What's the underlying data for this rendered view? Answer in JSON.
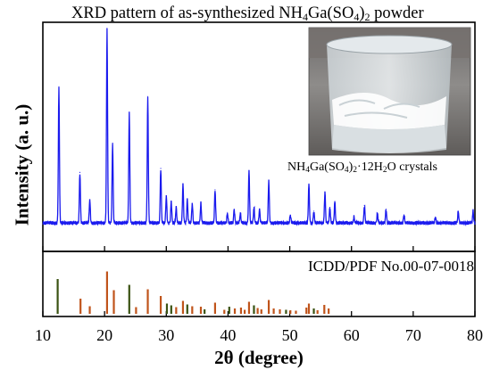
{
  "chart_data": {
    "type": "line",
    "title_parts": [
      "XRD pattern of as-synthesized NH",
      "4",
      "Ga(SO",
      "4",
      ")",
      "2",
      " powder"
    ],
    "xlabel": "2θ (degree)",
    "ylabel": "Intensity (a. u.)",
    "xlim": [
      10,
      80
    ],
    "xticks": [
      "10",
      "20",
      "30",
      "40",
      "50",
      "60",
      "70",
      "80"
    ],
    "inset": {
      "caption_parts": [
        "NH",
        "4",
        "Ga(SO",
        "4",
        ")",
        "2",
        "·12H",
        "2",
        "O crystals"
      ],
      "image": "beaker-of-crystals-photo"
    },
    "series": [
      {
        "color": "#1a1aee",
        "peaks": [
          [
            12.6,
            0.7
          ],
          [
            16.0,
            0.26
          ],
          [
            17.6,
            0.12
          ],
          [
            20.4,
            1.0
          ],
          [
            21.3,
            0.41
          ],
          [
            24.0,
            0.57
          ],
          [
            27.0,
            0.65
          ],
          [
            29.1,
            0.28
          ],
          [
            30.0,
            0.14
          ],
          [
            30.8,
            0.11
          ],
          [
            31.6,
            0.08
          ],
          [
            32.7,
            0.2
          ],
          [
            33.4,
            0.12
          ],
          [
            34.2,
            0.1
          ],
          [
            35.6,
            0.1
          ],
          [
            37.9,
            0.17
          ],
          [
            39.9,
            0.05
          ],
          [
            41.0,
            0.07
          ],
          [
            42.0,
            0.05
          ],
          [
            43.4,
            0.27
          ],
          [
            44.2,
            0.08
          ],
          [
            45.1,
            0.07
          ],
          [
            46.6,
            0.22
          ],
          [
            50.1,
            0.04
          ],
          [
            53.1,
            0.2
          ],
          [
            53.9,
            0.06
          ],
          [
            55.7,
            0.16
          ],
          [
            56.5,
            0.08
          ],
          [
            57.3,
            0.11
          ],
          [
            60.4,
            0.03
          ],
          [
            62.1,
            0.09
          ],
          [
            64.2,
            0.05
          ],
          [
            65.6,
            0.07
          ],
          [
            68.5,
            0.04
          ],
          [
            73.6,
            0.03
          ],
          [
            77.3,
            0.06
          ],
          [
            79.7,
            0.06
          ]
        ]
      }
    ],
    "reference": {
      "label": "ICDD/PDF No.00-07-0018",
      "bar_color": "#c0541b",
      "dark_bar_color": "#3a5212",
      "lines": [
        [
          12.4,
          0.78,
          1
        ],
        [
          16.1,
          0.34,
          0
        ],
        [
          17.6,
          0.17,
          0
        ],
        [
          20.4,
          0.95,
          0
        ],
        [
          21.5,
          0.53,
          0
        ],
        [
          24.0,
          0.65,
          1
        ],
        [
          25.1,
          0.15,
          0
        ],
        [
          27.0,
          0.55,
          0
        ],
        [
          29.1,
          0.4,
          0
        ],
        [
          30.1,
          0.23,
          1
        ],
        [
          30.8,
          0.19,
          1
        ],
        [
          31.6,
          0.15,
          0
        ],
        [
          32.7,
          0.29,
          0
        ],
        [
          33.4,
          0.21,
          1
        ],
        [
          34.2,
          0.17,
          0
        ],
        [
          35.6,
          0.16,
          0
        ],
        [
          36.2,
          0.1,
          1
        ],
        [
          37.9,
          0.25,
          0
        ],
        [
          39.4,
          0.09,
          0
        ],
        [
          40.2,
          0.16,
          1
        ],
        [
          41.1,
          0.12,
          0
        ],
        [
          42.1,
          0.14,
          0
        ],
        [
          42.7,
          0.09,
          0
        ],
        [
          43.4,
          0.27,
          0
        ],
        [
          44.2,
          0.19,
          1
        ],
        [
          44.8,
          0.13,
          0
        ],
        [
          45.4,
          0.1,
          0
        ],
        [
          46.6,
          0.31,
          0
        ],
        [
          47.4,
          0.12,
          0
        ],
        [
          48.4,
          0.1,
          0
        ],
        [
          49.4,
          0.09,
          1
        ],
        [
          50.1,
          0.08,
          0
        ],
        [
          51.0,
          0.07,
          0
        ],
        [
          52.7,
          0.14,
          0
        ],
        [
          53.1,
          0.23,
          0
        ],
        [
          53.9,
          0.12,
          1
        ],
        [
          54.5,
          0.08,
          0
        ],
        [
          55.6,
          0.2,
          0
        ],
        [
          56.3,
          0.12,
          0
        ]
      ]
    }
  }
}
